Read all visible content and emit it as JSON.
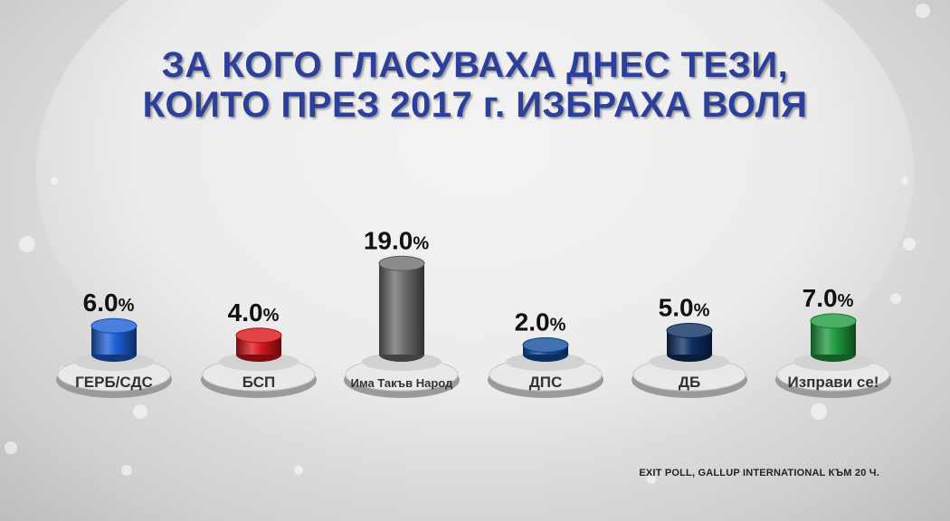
{
  "title_line1": "ЗА КОГО ГЛАСУВАХА ДНЕС ТЕЗИ,",
  "title_line2": "КОИТО ПРЕЗ 2017 г. ИЗБРАХА ВОЛЯ",
  "source": "EXIT POLL, GALLUP INTERNATIONAL КЪМ 20 Ч.",
  "chart_data": {
    "type": "bar",
    "categories": [
      "ГЕРБ/СДС",
      "БСП",
      "Има Такъв Народ",
      "ДПС",
      "ДБ",
      "Изправи се!"
    ],
    "values": [
      6.0,
      4.0,
      19.0,
      2.0,
      5.0,
      7.0
    ],
    "value_labels": [
      "6.0",
      "4.0",
      "19.0",
      "2.0",
      "5.0",
      "7.0"
    ],
    "unit": "%",
    "colors": [
      "#1d5fd6",
      "#d8151b",
      "#6e6e6e",
      "#124e9c",
      "#0e2f63",
      "#1f9a3f"
    ],
    "title": "ЗА КОГО ГЛАСУВАХА ДНЕС ТЕЗИ, КОИТО ПРЕЗ 2017 г. ИЗБРАХА ВОЛЯ",
    "xlabel": "",
    "ylabel": "",
    "grid": false
  }
}
